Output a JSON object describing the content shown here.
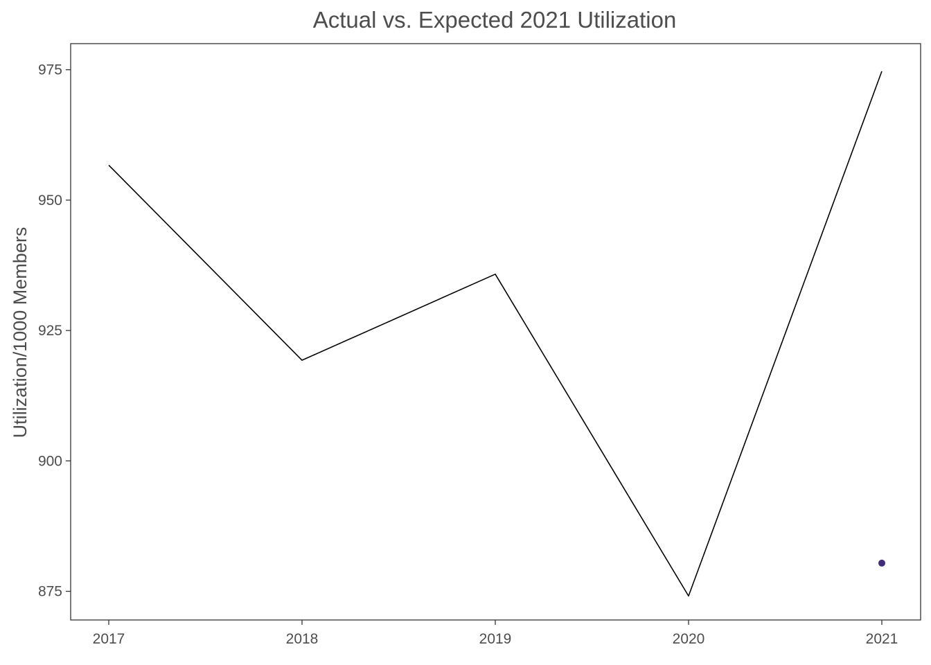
{
  "chart_data": {
    "type": "line",
    "title": "Actual vs. Expected 2021 Utilization",
    "xlabel": "",
    "ylabel": "Utilization/1000 Members",
    "x": [
      "2017",
      "2018",
      "2019",
      "2020",
      "2021"
    ],
    "series": [
      {
        "values": [
          956.7,
          919.3,
          935.8,
          874.1,
          974.7
        ],
        "color": "#000000"
      }
    ],
    "points": [
      {
        "x": "2021",
        "y": 880.4,
        "color": "#3f2d7a"
      }
    ],
    "xlim": [
      "2017",
      "2021"
    ],
    "ylim": [
      869.5,
      980.0
    ],
    "yticks": [
      875,
      900,
      925,
      950,
      975
    ],
    "grid": false,
    "legend": "none"
  }
}
